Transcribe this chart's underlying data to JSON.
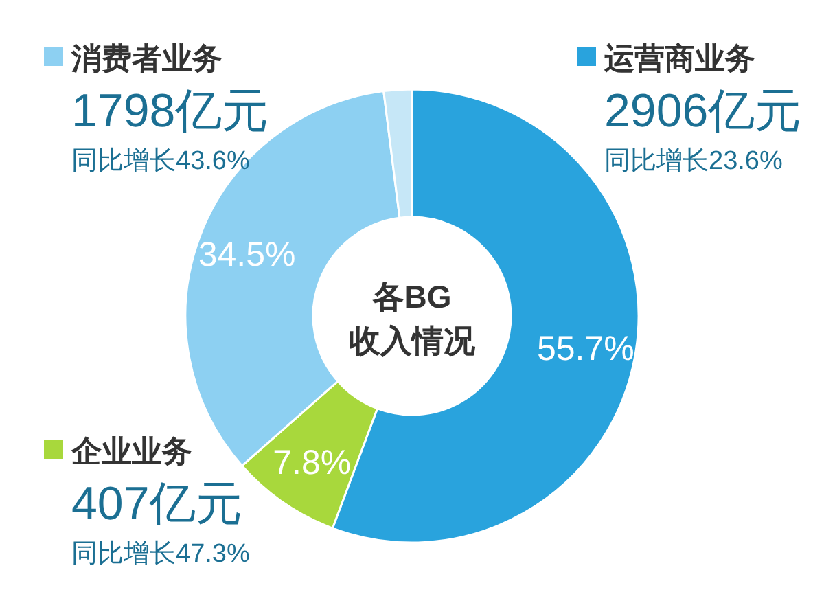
{
  "chart_data": {
    "type": "donut",
    "title": "各BG收入情况",
    "categories": [
      "运营商业务",
      "企业业务",
      "消费者业务",
      null
    ],
    "values": [
      55.7,
      7.8,
      34.5,
      2.0
    ],
    "colors": [
      "#29a3dd",
      "#a8d83c",
      "#8dd0f2",
      "#c6e7f7"
    ],
    "legend": "left",
    "value_labels": [
      "55.7%",
      "7.8%",
      "34.5%",
      null
    ],
    "annotations": [
      "2906亿元",
      "同比增长23.6%",
      "407亿元",
      "同比增长47.3%",
      "1798亿元",
      "同比增长43.6%"
    ]
  }
}
